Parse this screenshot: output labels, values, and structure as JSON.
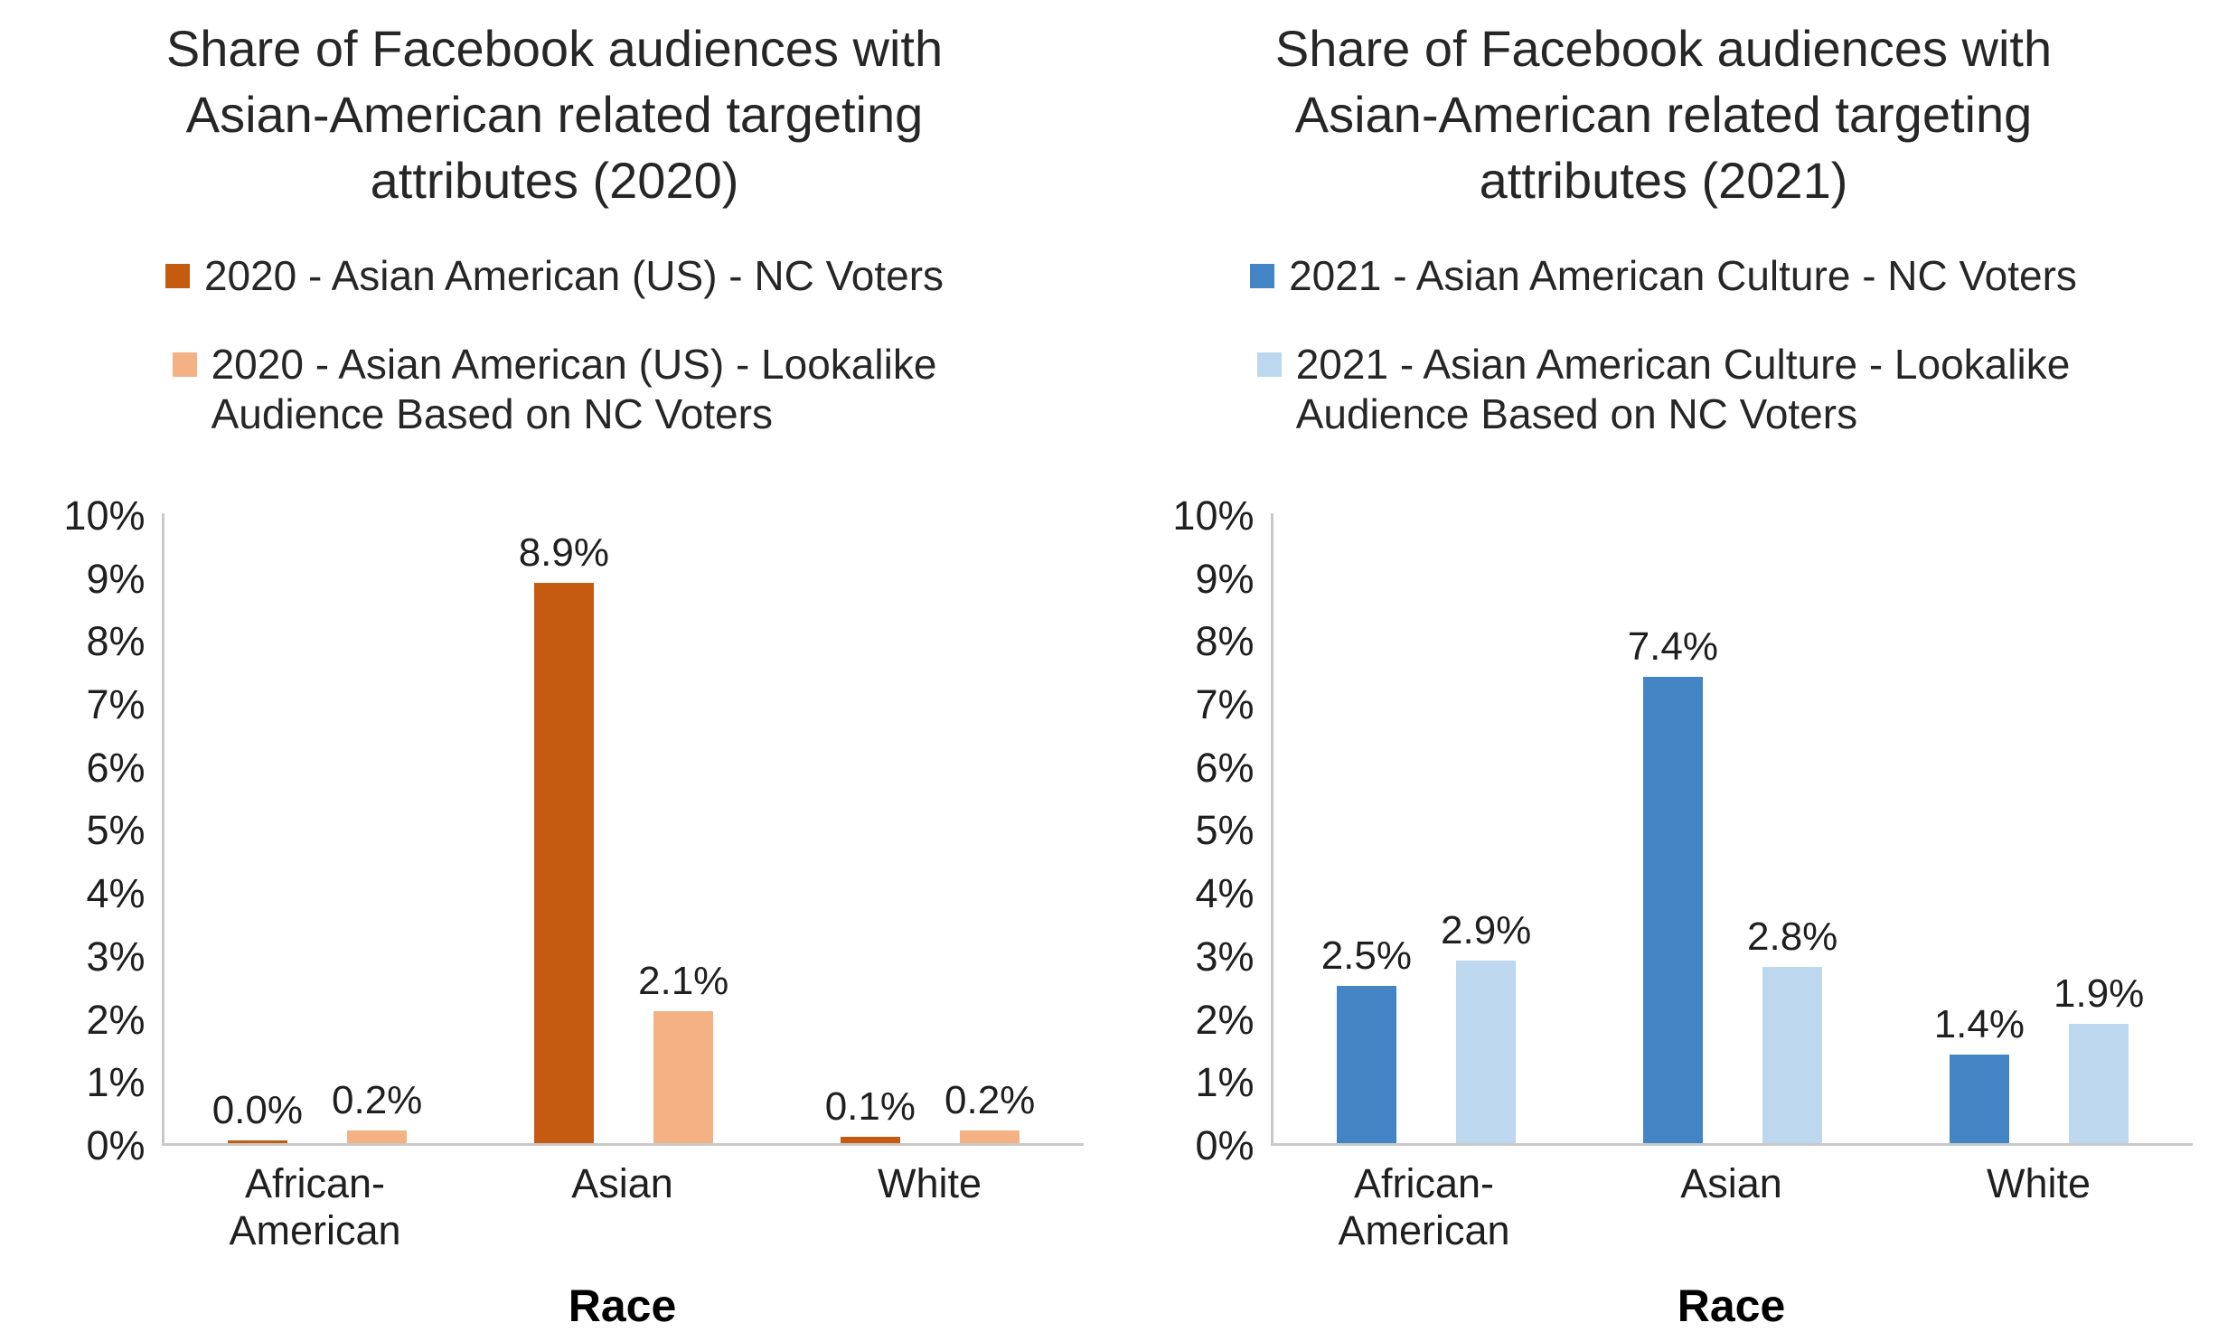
{
  "page": {
    "background": "#FFFFFF"
  },
  "charts": [
    {
      "title": "Share of Facebook audiences with Asian-American related targeting attributes (2020)",
      "legend": [
        {
          "lines": [
            "2020 - Asian American (US) - NC Voters"
          ],
          "color": "#C55A11"
        },
        {
          "lines": [
            "2020 - Asian American (US) - Lookalike",
            "Audience Based on NC Voters"
          ],
          "color": "#F4B183"
        }
      ],
      "chart_data": {
        "type": "bar",
        "categories": [
          "African-American",
          "Asian",
          "White"
        ],
        "series": [
          {
            "name": "2020 - Asian American (US) - NC Voters",
            "color": "#C55A11",
            "values": [
              0.0,
              8.9,
              0.1
            ],
            "data_labels": [
              "0.0%",
              "8.9%",
              "0.1%"
            ]
          },
          {
            "name": "2020 - Asian American (US) - Lookalike Audience Based on NC Voters",
            "color": "#F4B183",
            "values": [
              0.2,
              2.1,
              0.2
            ],
            "data_labels": [
              "0.2%",
              "2.1%",
              "0.2%"
            ]
          }
        ],
        "xlabel": "Race",
        "ylabel": "",
        "ylim": [
          0,
          10
        ],
        "yticks": [
          "0%",
          "1%",
          "2%",
          "3%",
          "4%",
          "5%",
          "6%",
          "7%",
          "8%",
          "9%",
          "10%"
        ],
        "grid": false,
        "legend_position": "top"
      }
    },
    {
      "title": "Share of Facebook audiences with Asian-American related targeting attributes (2021)",
      "legend": [
        {
          "lines": [
            "2021 - Asian American Culture - NC Voters"
          ],
          "color": "#4284C4"
        },
        {
          "lines": [
            "2021 - Asian American Culture - Lookalike",
            "Audience Based on NC Voters"
          ],
          "color": "#BDD7EE"
        }
      ],
      "chart_data": {
        "type": "bar",
        "categories": [
          "African-American",
          "Asian",
          "White"
        ],
        "series": [
          {
            "name": "2021 - Asian American Culture - NC Voters",
            "color": "#4284C4",
            "values": [
              2.5,
              7.4,
              1.4
            ],
            "data_labels": [
              "2.5%",
              "7.4%",
              "1.4%"
            ]
          },
          {
            "name": "2021 - Asian American Culture - Lookalike Audience Based on NC Voters",
            "color": "#BDD7EE",
            "values": [
              2.9,
              2.8,
              1.9
            ],
            "data_labels": [
              "2.9%",
              "2.8%",
              "1.9%"
            ]
          }
        ],
        "xlabel": "Race",
        "ylabel": "",
        "ylim": [
          0,
          10
        ],
        "yticks": [
          "0%",
          "1%",
          "2%",
          "3%",
          "4%",
          "5%",
          "6%",
          "7%",
          "8%",
          "9%",
          "10%"
        ],
        "grid": false,
        "legend_position": "top"
      }
    }
  ]
}
